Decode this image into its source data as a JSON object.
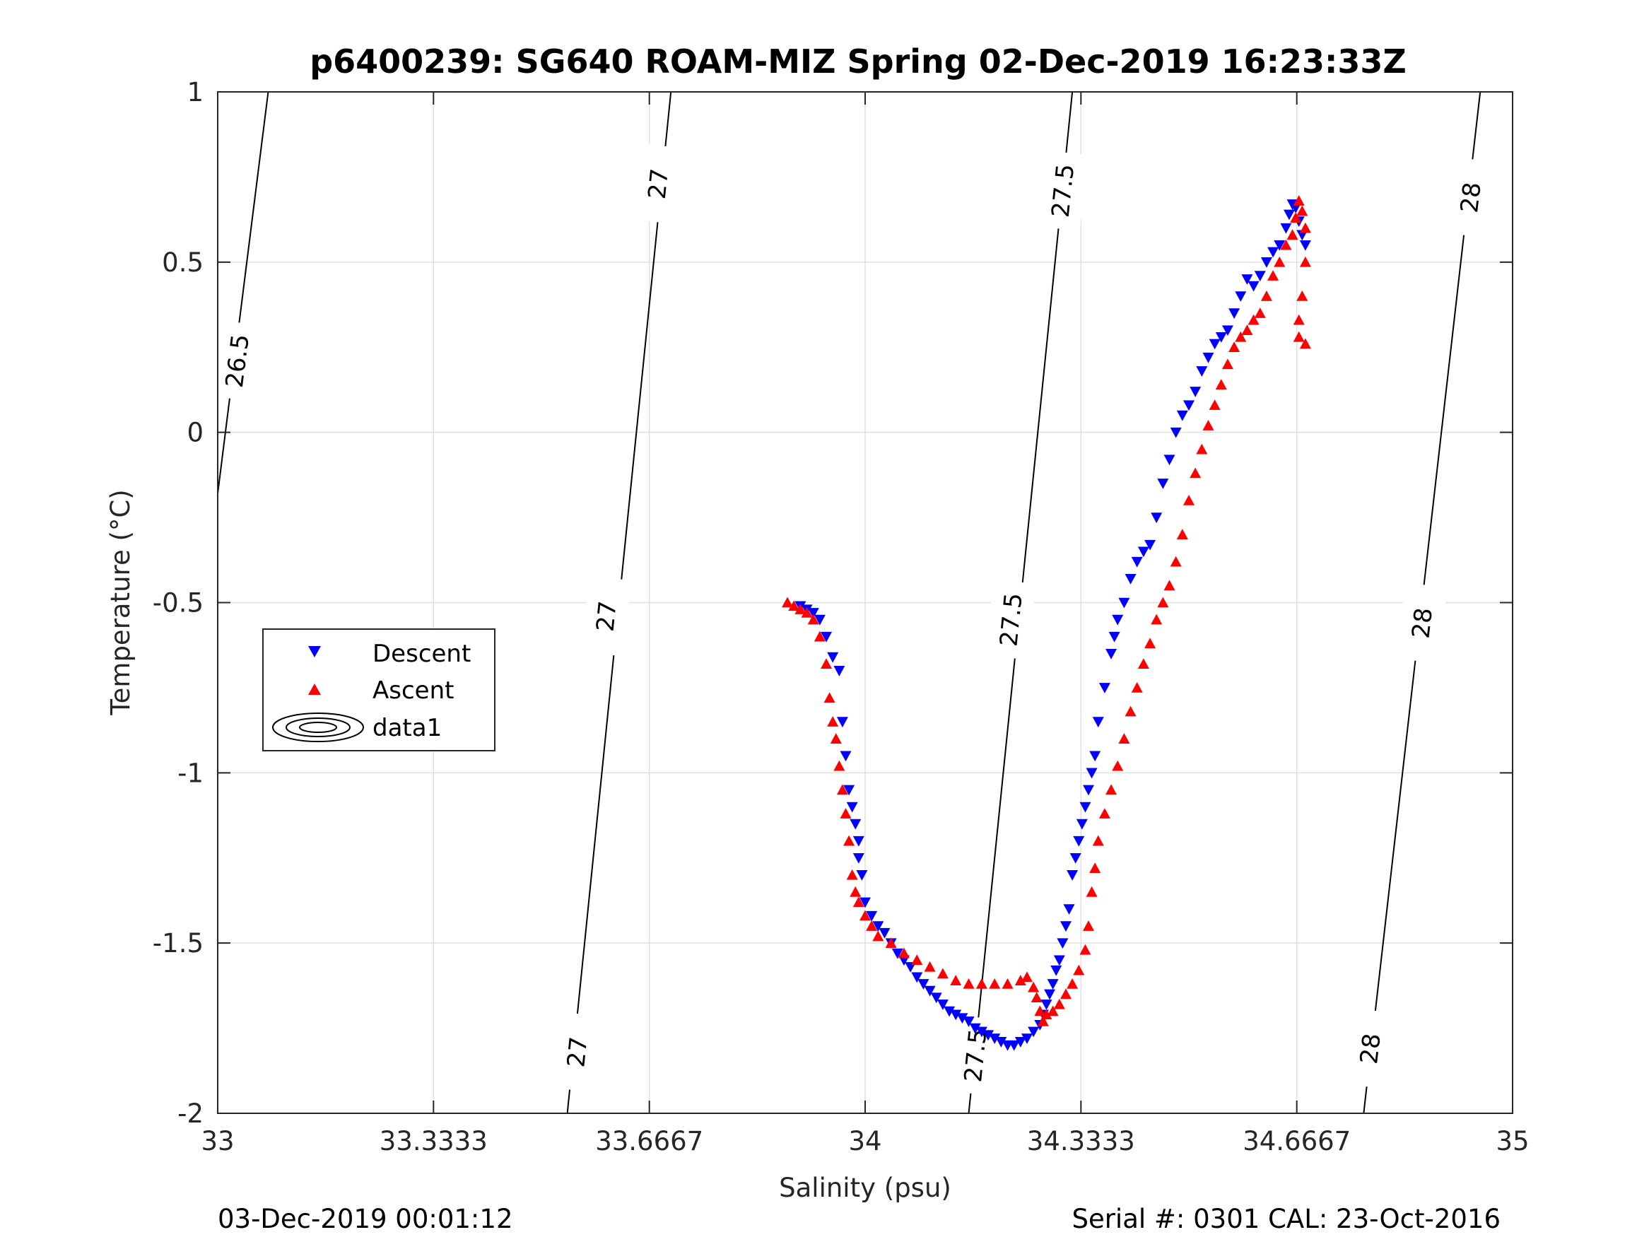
{
  "title": "p6400239: SG640 ROAM-MIZ Spring 02-Dec-2019 16:23:33Z",
  "footer_left": "03-Dec-2019 00:01:12",
  "footer_right": "Serial #: 0301  CAL: 23-Oct-2016",
  "chart_data": {
    "type": "scatter",
    "title": "p6400239: SG640 ROAM-MIZ Spring 02-Dec-2019 16:23:33Z",
    "xlabel": "Salinity (psu)",
    "ylabel": "Temperature (°C)",
    "xlim": [
      33,
      35
    ],
    "ylim": [
      -2,
      1
    ],
    "xticks": [
      33,
      33.3333,
      33.6667,
      34,
      34.3333,
      34.6667,
      35
    ],
    "xtick_labels": [
      "33",
      "33.3333",
      "33.6667",
      "34",
      "34.3333",
      "34.6667",
      "35"
    ],
    "yticks": [
      1,
      0.5,
      0,
      -0.5,
      -1,
      -1.5,
      -2
    ],
    "ytick_labels": [
      "1",
      "0.5",
      "0",
      "-0.5",
      "-1",
      "-1.5",
      "-2"
    ],
    "grid": true,
    "legend_position": "left-middle",
    "density_contours": [
      {
        "label": "26.5",
        "points": [
          [
            33.078,
            1.0
          ],
          [
            33.0,
            -0.18
          ]
        ],
        "label_at": [
          33.03,
          0.21
        ]
      },
      {
        "label": "27",
        "points": [
          [
            33.7,
            1.0
          ],
          [
            33.54,
            -2.0
          ]
        ],
        "label_at": [
          [
            33.68,
            0.73
          ],
          [
            33.6,
            -0.54
          ],
          [
            33.555,
            -1.82
          ]
        ]
      },
      {
        "label": "27.5",
        "points": [
          [
            34.32,
            1.0
          ],
          [
            34.16,
            -2.0
          ]
        ],
        "label_at": [
          [
            34.305,
            0.71
          ],
          [
            34.225,
            -0.55
          ],
          [
            34.17,
            -1.83
          ]
        ]
      },
      {
        "label": "28",
        "points": [
          [
            34.95,
            1.0
          ],
          [
            34.77,
            -2.0
          ]
        ],
        "label_at": [
          [
            34.935,
            0.69
          ],
          [
            34.86,
            -0.56
          ],
          [
            34.78,
            -1.81
          ]
        ]
      }
    ],
    "series": [
      {
        "name": "Descent",
        "color": "#0000ff",
        "marker": "triangle-down",
        "x": [
          33.9,
          33.91,
          33.92,
          33.93,
          33.94,
          33.95,
          33.96,
          33.965,
          33.97,
          33.975,
          33.98,
          33.985,
          33.99,
          33.99,
          33.995,
          34.0,
          34.01,
          34.02,
          34.03,
          34.04,
          34.05,
          34.06,
          34.07,
          34.08,
          34.09,
          34.1,
          34.11,
          34.12,
          34.13,
          34.14,
          34.15,
          34.16,
          34.17,
          34.18,
          34.19,
          34.2,
          34.21,
          34.22,
          34.23,
          34.24,
          34.25,
          34.26,
          34.27,
          34.275,
          34.28,
          34.285,
          34.29,
          34.295,
          34.3,
          34.305,
          34.31,
          34.315,
          34.32,
          34.325,
          34.33,
          34.335,
          34.34,
          34.345,
          34.35,
          34.355,
          34.36,
          34.37,
          34.38,
          34.385,
          34.39,
          34.4,
          34.41,
          34.42,
          34.43,
          34.44,
          34.45,
          34.46,
          34.47,
          34.48,
          34.49,
          34.5,
          34.51,
          34.52,
          34.53,
          34.54,
          34.55,
          34.56,
          34.57,
          34.58,
          34.59,
          34.6,
          34.61,
          34.62,
          34.63,
          34.64,
          34.65,
          34.655,
          34.66,
          34.665,
          34.67,
          34.675,
          34.68
        ],
        "y": [
          -0.51,
          -0.52,
          -0.53,
          -0.55,
          -0.6,
          -0.66,
          -0.7,
          -0.85,
          -0.95,
          -1.05,
          -1.1,
          -1.15,
          -1.2,
          -1.25,
          -1.3,
          -1.38,
          -1.42,
          -1.45,
          -1.47,
          -1.5,
          -1.53,
          -1.55,
          -1.57,
          -1.6,
          -1.62,
          -1.64,
          -1.66,
          -1.68,
          -1.7,
          -1.71,
          -1.72,
          -1.73,
          -1.75,
          -1.76,
          -1.77,
          -1.78,
          -1.79,
          -1.8,
          -1.8,
          -1.79,
          -1.78,
          -1.76,
          -1.74,
          -1.71,
          -1.68,
          -1.65,
          -1.62,
          -1.58,
          -1.55,
          -1.5,
          -1.45,
          -1.4,
          -1.3,
          -1.25,
          -1.2,
          -1.15,
          -1.1,
          -1.05,
          -1.0,
          -0.95,
          -0.85,
          -0.75,
          -0.65,
          -0.6,
          -0.55,
          -0.5,
          -0.43,
          -0.38,
          -0.35,
          -0.33,
          -0.25,
          -0.15,
          -0.08,
          0.0,
          0.05,
          0.08,
          0.12,
          0.18,
          0.22,
          0.26,
          0.28,
          0.3,
          0.35,
          0.4,
          0.45,
          0.43,
          0.46,
          0.5,
          0.53,
          0.55,
          0.6,
          0.64,
          0.67,
          0.66,
          0.62,
          0.58,
          0.55
        ]
      },
      {
        "name": "Ascent",
        "color": "#ff0000",
        "marker": "triangle-up",
        "x": [
          33.88,
          33.89,
          33.9,
          33.91,
          33.92,
          33.93,
          33.94,
          33.945,
          33.95,
          33.955,
          33.96,
          33.965,
          33.97,
          33.975,
          33.98,
          33.985,
          33.99,
          34.0,
          34.01,
          34.02,
          34.04,
          34.06,
          34.08,
          34.1,
          34.12,
          34.14,
          34.16,
          34.18,
          34.2,
          34.22,
          34.24,
          34.25,
          34.26,
          34.265,
          34.27,
          34.275,
          34.28,
          34.29,
          34.3,
          34.31,
          34.32,
          34.33,
          34.34,
          34.345,
          34.35,
          34.355,
          34.36,
          34.37,
          34.38,
          34.39,
          34.4,
          34.41,
          34.42,
          34.43,
          34.44,
          34.45,
          34.46,
          34.47,
          34.48,
          34.49,
          34.5,
          34.51,
          34.52,
          34.53,
          34.54,
          34.55,
          34.56,
          34.57,
          34.58,
          34.59,
          34.6,
          34.61,
          34.62,
          34.63,
          34.64,
          34.65,
          34.66,
          34.665,
          34.67,
          34.675,
          34.68,
          34.68,
          34.675,
          34.67,
          34.67,
          34.68
        ],
        "y": [
          -0.5,
          -0.51,
          -0.52,
          -0.53,
          -0.55,
          -0.6,
          -0.68,
          -0.78,
          -0.85,
          -0.9,
          -0.98,
          -1.05,
          -1.12,
          -1.2,
          -1.3,
          -1.35,
          -1.38,
          -1.42,
          -1.45,
          -1.48,
          -1.5,
          -1.53,
          -1.55,
          -1.57,
          -1.59,
          -1.61,
          -1.62,
          -1.62,
          -1.62,
          -1.62,
          -1.61,
          -1.6,
          -1.63,
          -1.66,
          -1.7,
          -1.73,
          -1.71,
          -1.7,
          -1.68,
          -1.65,
          -1.62,
          -1.58,
          -1.52,
          -1.45,
          -1.35,
          -1.28,
          -1.2,
          -1.12,
          -1.05,
          -0.98,
          -0.9,
          -0.82,
          -0.75,
          -0.68,
          -0.62,
          -0.55,
          -0.5,
          -0.45,
          -0.38,
          -0.3,
          -0.2,
          -0.12,
          -0.05,
          0.02,
          0.08,
          0.14,
          0.2,
          0.25,
          0.28,
          0.3,
          0.33,
          0.35,
          0.4,
          0.46,
          0.5,
          0.55,
          0.58,
          0.63,
          0.68,
          0.65,
          0.6,
          0.5,
          0.4,
          0.33,
          0.28,
          0.26
        ]
      },
      {
        "name": "data1",
        "color": "#000000",
        "marker": "contour"
      }
    ]
  }
}
